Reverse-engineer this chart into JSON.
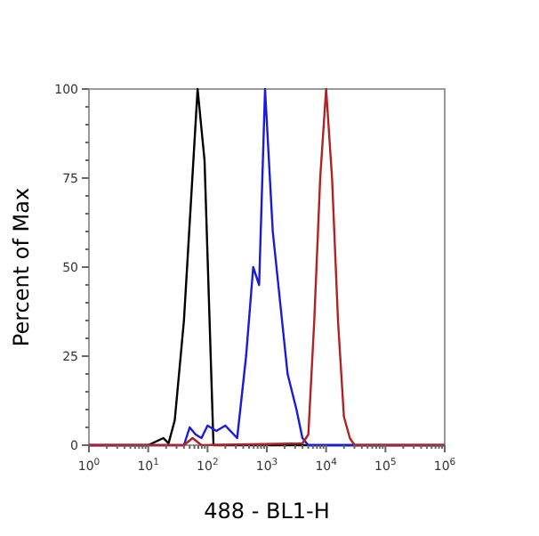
{
  "chart_data": {
    "type": "line",
    "xlabel": "488 - BL1-H",
    "ylabel": "Percent of Max",
    "log": "x",
    "xlim": [
      1,
      1000000
    ],
    "ylim": [
      0,
      100
    ],
    "xticks": [
      {
        "value": 1,
        "label": "10$^{0}$"
      },
      {
        "value": 2,
        "label": null
      },
      {
        "value": 3,
        "label": null
      },
      {
        "value": 4,
        "label": null
      },
      {
        "value": 5,
        "label": null
      },
      {
        "value": 6,
        "label": null
      },
      {
        "value": 7,
        "label": null
      },
      {
        "value": 8,
        "label": null
      },
      {
        "value": 9,
        "label": null
      },
      {
        "value": 10,
        "label": "10$^{1}$"
      },
      {
        "value": 20,
        "label": null
      },
      {
        "value": 30,
        "label": null
      },
      {
        "value": 40,
        "label": null
      },
      {
        "value": 50,
        "label": null
      },
      {
        "value": 60,
        "label": null
      },
      {
        "value": 70,
        "label": null
      },
      {
        "value": 80,
        "label": null
      },
      {
        "value": 90,
        "label": null
      },
      {
        "value": 100,
        "label": "10$^{2}$"
      },
      {
        "value": 200,
        "label": null
      },
      {
        "value": 300,
        "label": null
      },
      {
        "value": 400,
        "label": null
      },
      {
        "value": 500,
        "label": null
      },
      {
        "value": 600,
        "label": null
      },
      {
        "value": 700,
        "label": null
      },
      {
        "value": 800,
        "label": null
      },
      {
        "value": 900,
        "label": null
      },
      {
        "value": 1000,
        "label": "10$^{3}$"
      },
      {
        "value": 2000,
        "label": null
      },
      {
        "value": 3000,
        "label": null
      },
      {
        "value": 4000,
        "label": null
      },
      {
        "value": 5000,
        "label": null
      },
      {
        "value": 6000,
        "label": null
      },
      {
        "value": 7000,
        "label": null
      },
      {
        "value": 8000,
        "label": null
      },
      {
        "value": 9000,
        "label": null
      },
      {
        "value": 10000,
        "label": "10$^{4}$"
      },
      {
        "value": 20000,
        "label": null
      },
      {
        "value": 30000,
        "label": null
      },
      {
        "value": 40000,
        "label": null
      },
      {
        "value": 50000,
        "label": null
      },
      {
        "value": 60000,
        "label": null
      },
      {
        "value": 70000,
        "label": null
      },
      {
        "value": 80000,
        "label": null
      },
      {
        "value": 90000,
        "label": null
      },
      {
        "value": 100000,
        "label": "10$^{5}$"
      },
      {
        "value": 200000,
        "label": null
      },
      {
        "value": 300000,
        "label": null
      },
      {
        "value": 400000,
        "label": null
      },
      {
        "value": 500000,
        "label": null
      },
      {
        "value": 600000,
        "label": null
      },
      {
        "value": 700000,
        "label": null
      },
      {
        "value": 800000,
        "label": null
      },
      {
        "value": 900000,
        "label": null
      },
      {
        "value": 1000000,
        "label": "10$^{6}$"
      }
    ],
    "yticks": [
      0,
      {
        "value": 5,
        "label": null
      },
      {
        "value": 10,
        "label": null
      },
      {
        "value": 15,
        "label": null
      },
      {
        "value": 20,
        "label": null
      },
      25,
      {
        "value": 30,
        "label": null
      },
      {
        "value": 35,
        "label": null
      },
      {
        "value": 40,
        "label": null
      },
      {
        "value": 45,
        "label": null
      },
      50,
      {
        "value": 55,
        "label": null
      },
      {
        "value": 60,
        "label": null
      },
      {
        "value": 65,
        "label": null
      },
      {
        "value": 70,
        "label": null
      },
      75,
      {
        "value": 80,
        "label": null
      },
      {
        "value": 85,
        "label": null
      },
      {
        "value": 90,
        "label": null
      },
      {
        "value": 95,
        "label": null
      },
      100
    ],
    "grid": false,
    "marker": "none",
    "line_style": "solid",
    "series": [
      {
        "color": "#000000",
        "x": [
          1,
          10,
          18,
          22,
          28,
          40,
          68,
          89,
          126,
          200,
          1000000
        ],
        "values": [
          0,
          0,
          2,
          0.5,
          7,
          35,
          100,
          80,
          0,
          0,
          0
        ]
      },
      {
        "color": "#1a1adc",
        "x": [
          1,
          40,
          50,
          63,
          79,
          100,
          141,
          200,
          316,
          447,
          589,
          741,
          933,
          1259,
          2239,
          3162,
          3981,
          5012,
          1000000
        ],
        "values": [
          0,
          0,
          5,
          3,
          2,
          5.5,
          4,
          5.5,
          2,
          25,
          50,
          45,
          100,
          60,
          20,
          10,
          2,
          0,
          0
        ]
      },
      {
        "color": "#b22222",
        "x": [
          1,
          40,
          56,
          79,
          3981,
          5012,
          6310,
          7943,
          10000,
          12589,
          15849,
          19953,
          25119,
          30200,
          1000000
        ],
        "values": [
          0,
          0,
          2,
          0,
          0.5,
          3,
          35,
          75,
          100,
          75,
          35,
          8,
          2,
          0,
          0
        ]
      }
    ]
  }
}
